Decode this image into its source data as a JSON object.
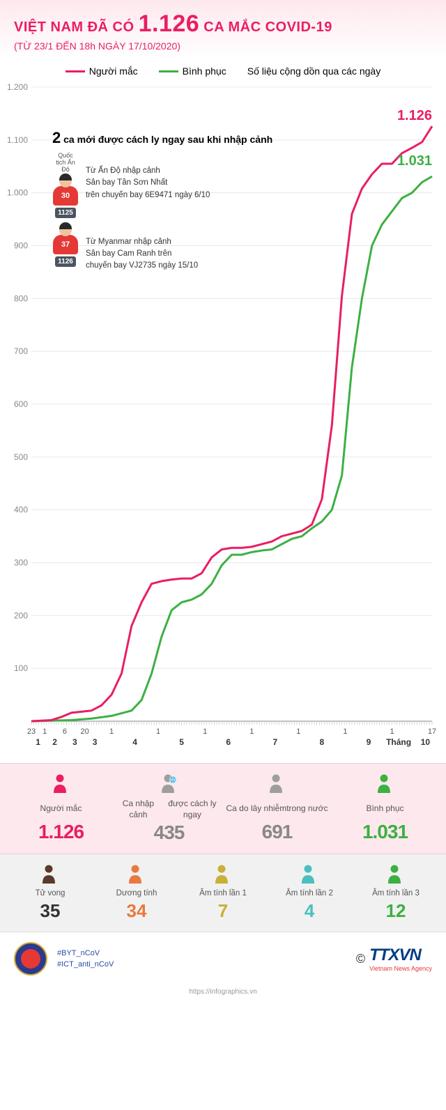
{
  "header": {
    "title_prefix": "VIỆT NAM ĐÃ CÓ",
    "title_number": "1.126",
    "title_suffix": "CA MẮC COVID-19",
    "subtitle": "(TỪ 23/1 ĐẾN 18h NGÀY 17/10/2020)"
  },
  "legend": {
    "series1": {
      "label": "Người mắc",
      "color": "#e91e63"
    },
    "series2": {
      "label": "Bình phục",
      "color": "#3cb043"
    },
    "note": "Số liệu cộng dồn qua các ngày"
  },
  "chart": {
    "type": "line",
    "ylim": [
      0,
      1200
    ],
    "yticks": [
      100,
      200,
      300,
      400,
      500,
      600,
      700,
      800,
      900,
      1000,
      1100,
      1200
    ],
    "ytick_color": "#888888",
    "ytick_fontsize": 12,
    "grid_color": "#e8e8e8",
    "background_color": "#ffffff",
    "xlabels": [
      "23",
      "1",
      "6",
      "20",
      "1",
      "1",
      "1",
      "1",
      "1",
      "1",
      "1",
      "17"
    ],
    "xmonths": [
      "1",
      "2",
      "3",
      "3",
      "4",
      "5",
      "6",
      "7",
      "8",
      "9",
      "Tháng",
      "10"
    ],
    "line_width": 3,
    "end_values": {
      "cases": {
        "text": "1.126",
        "color": "#e91e63"
      },
      "recovered": {
        "text": "1.031",
        "color": "#3cb043"
      }
    },
    "series_cases": {
      "color": "#e91e63",
      "points": [
        [
          0,
          0
        ],
        [
          3,
          1
        ],
        [
          6,
          2
        ],
        [
          9,
          8
        ],
        [
          12,
          16
        ],
        [
          15,
          18
        ],
        [
          18,
          20
        ],
        [
          21,
          30
        ],
        [
          24,
          50
        ],
        [
          27,
          90
        ],
        [
          30,
          180
        ],
        [
          33,
          225
        ],
        [
          36,
          260
        ],
        [
          39,
          265
        ],
        [
          42,
          268
        ],
        [
          45,
          270
        ],
        [
          48,
          270
        ],
        [
          51,
          280
        ],
        [
          54,
          310
        ],
        [
          57,
          325
        ],
        [
          60,
          328
        ],
        [
          63,
          328
        ],
        [
          66,
          330
        ],
        [
          69,
          335
        ],
        [
          72,
          340
        ],
        [
          75,
          350
        ],
        [
          78,
          355
        ],
        [
          81,
          360
        ],
        [
          84,
          372
        ],
        [
          87,
          420
        ],
        [
          90,
          560
        ],
        [
          93,
          805
        ],
        [
          96,
          960
        ],
        [
          99,
          1008
        ],
        [
          102,
          1035
        ],
        [
          105,
          1055
        ],
        [
          108,
          1055
        ],
        [
          111,
          1075
        ],
        [
          114,
          1085
        ],
        [
          117,
          1096
        ],
        [
          120,
          1126
        ]
      ]
    },
    "series_recovered": {
      "color": "#3cb043",
      "points": [
        [
          0,
          0
        ],
        [
          6,
          1
        ],
        [
          12,
          2
        ],
        [
          18,
          5
        ],
        [
          24,
          10
        ],
        [
          30,
          20
        ],
        [
          33,
          40
        ],
        [
          36,
          90
        ],
        [
          39,
          160
        ],
        [
          42,
          210
        ],
        [
          45,
          225
        ],
        [
          48,
          230
        ],
        [
          51,
          240
        ],
        [
          54,
          260
        ],
        [
          57,
          295
        ],
        [
          60,
          315
        ],
        [
          63,
          315
        ],
        [
          66,
          320
        ],
        [
          69,
          323
        ],
        [
          72,
          325
        ],
        [
          75,
          335
        ],
        [
          78,
          345
        ],
        [
          81,
          350
        ],
        [
          84,
          365
        ],
        [
          87,
          378
        ],
        [
          90,
          400
        ],
        [
          93,
          465
        ],
        [
          96,
          670
        ],
        [
          99,
          800
        ],
        [
          102,
          900
        ],
        [
          105,
          940
        ],
        [
          108,
          965
        ],
        [
          111,
          990
        ],
        [
          114,
          1000
        ],
        [
          117,
          1020
        ],
        [
          120,
          1031
        ]
      ]
    }
  },
  "annotation": {
    "title_num": "2",
    "title_text": "ca mới được cách ly ngay sau khi nhập cảnh",
    "cases": [
      {
        "nationality": "Quốc tịch\nẤn Độ",
        "age": "30",
        "case_id": "1125",
        "desc": "Từ Ấn Độ nhập cảnh\nSân bay Tân Sơn Nhất\ntrên chuyến bay 6E9471 ngày 6/10"
      },
      {
        "nationality": "",
        "age": "37",
        "case_id": "1126",
        "desc": "Từ Myanmar nhập cảnh\nSân bay Cam Ranh trên\nchuyến bay VJ2735 ngày 15/10"
      }
    ]
  },
  "stats_row1": [
    {
      "icon_color": "#e91e63",
      "label": "Người mắc",
      "value": "1.126",
      "value_color": "#e91e63"
    },
    {
      "icon_color": "#9e9e9e",
      "label": "Ca nhập cảnh\nđược cách ly ngay",
      "value": "435",
      "value_color": "#888888",
      "globe": true
    },
    {
      "icon_color": "#9e9e9e",
      "label": "Ca do lây nhiễm\ntrong nước",
      "value": "691",
      "value_color": "#888888"
    },
    {
      "icon_color": "#3cb043",
      "label": "Bình phục",
      "value": "1.031",
      "value_color": "#3cb043"
    }
  ],
  "stats_row2": [
    {
      "icon_color": "#5a3a28",
      "label": "Tử vong",
      "value": "35",
      "value_color": "#333333"
    },
    {
      "icon_color": "#e87a3f",
      "label": "Dương tính",
      "value": "34",
      "value_color": "#e87a3f"
    },
    {
      "icon_color": "#c9b037",
      "label": "Âm tính lần 1",
      "value": "7",
      "value_color": "#c9b037"
    },
    {
      "icon_color": "#4abfbf",
      "label": "Âm tính lần 2",
      "value": "4",
      "value_color": "#4abfbf"
    },
    {
      "icon_color": "#3cb043",
      "label": "Âm tính lần 3",
      "value": "12",
      "value_color": "#3cb043"
    }
  ],
  "footer": {
    "hashtags": [
      "#BYT_nCoV",
      "#ICT_anti_nCoV"
    ],
    "agency": "TTXVN",
    "agency_sub": "Vietnam News Agency",
    "copyright": "©",
    "url": "https://infographics.vn"
  }
}
